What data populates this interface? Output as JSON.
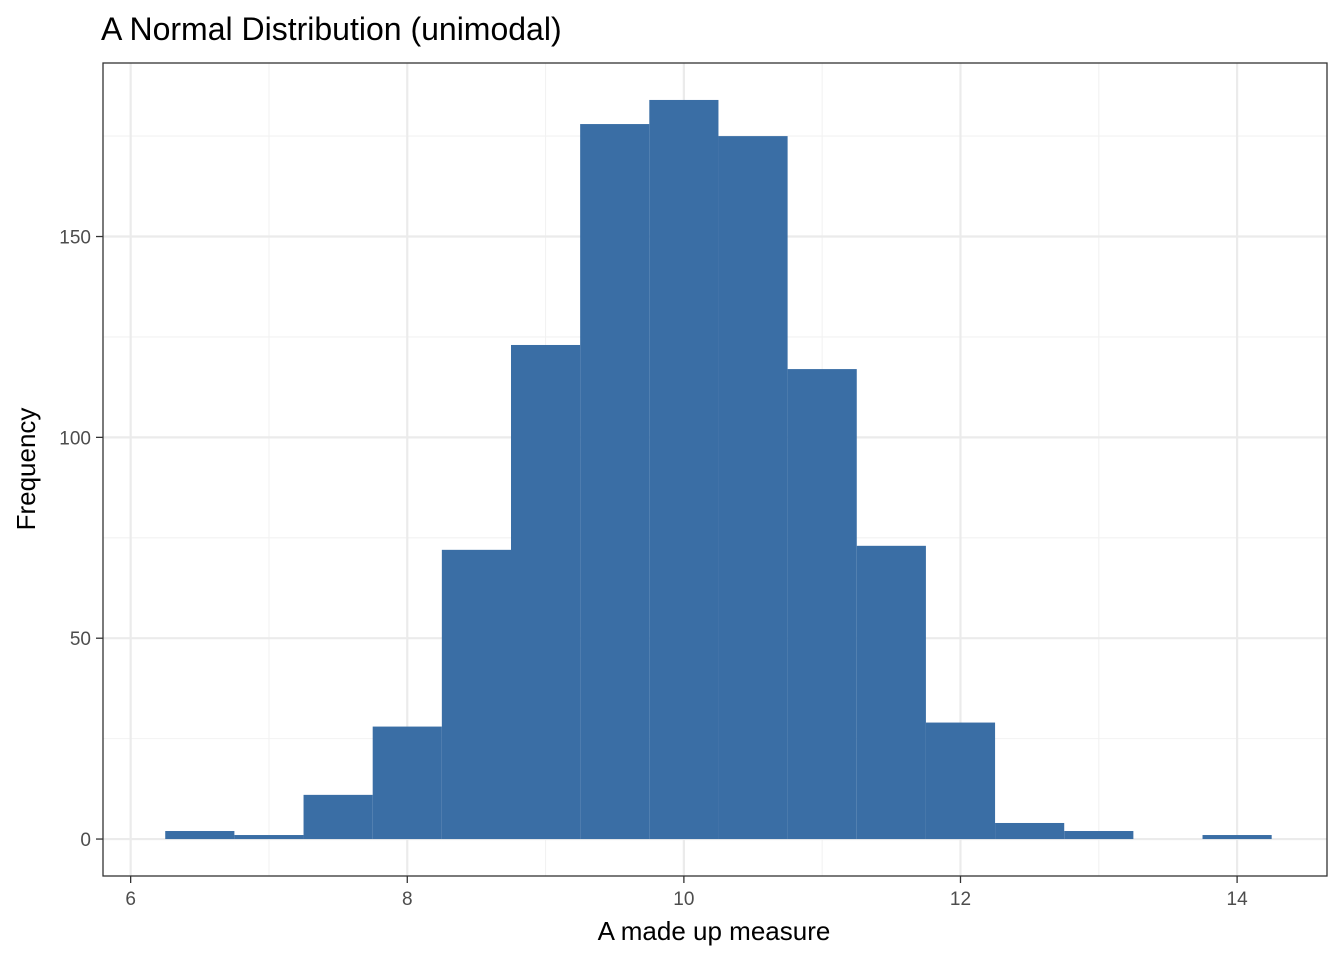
{
  "chart_data": {
    "type": "bar",
    "title": "A Normal Distribution (unimodal)",
    "xlabel": "A made up measure",
    "ylabel": "Frequency",
    "bin_width": 0.5,
    "bins": [
      {
        "x0": 6.25,
        "x1": 6.75,
        "count": 2
      },
      {
        "x0": 6.75,
        "x1": 7.25,
        "count": 1
      },
      {
        "x0": 7.25,
        "x1": 7.75,
        "count": 11
      },
      {
        "x0": 7.75,
        "x1": 8.25,
        "count": 28
      },
      {
        "x0": 8.25,
        "x1": 8.75,
        "count": 72
      },
      {
        "x0": 8.75,
        "x1": 9.25,
        "count": 123
      },
      {
        "x0": 9.25,
        "x1": 9.75,
        "count": 178
      },
      {
        "x0": 9.75,
        "x1": 10.25,
        "count": 184
      },
      {
        "x0": 10.25,
        "x1": 10.75,
        "count": 175
      },
      {
        "x0": 10.75,
        "x1": 11.25,
        "count": 117
      },
      {
        "x0": 11.25,
        "x1": 11.75,
        "count": 73
      },
      {
        "x0": 11.75,
        "x1": 12.25,
        "count": 29
      },
      {
        "x0": 12.25,
        "x1": 12.75,
        "count": 4
      },
      {
        "x0": 12.75,
        "x1": 13.25,
        "count": 2
      },
      {
        "x0": 13.25,
        "x1": 13.75,
        "count": 0
      },
      {
        "x0": 13.75,
        "x1": 14.25,
        "count": 1
      }
    ],
    "xlim": [
      5.8,
      14.65
    ],
    "ylim": [
      -9.2,
      193.2
    ],
    "x_ticks": [
      6,
      8,
      10,
      12,
      14
    ],
    "y_ticks": [
      0,
      50,
      100,
      150
    ],
    "x_minor_ticks": [
      7,
      9,
      11,
      13
    ],
    "y_minor_ticks": [
      25,
      75,
      125,
      175
    ],
    "grid": true,
    "bar_color": "#3a6ea5",
    "grid_major_color": "#ebebeb",
    "grid_minor_color": "#f2f2f2",
    "panel_border_color": "#333333"
  }
}
